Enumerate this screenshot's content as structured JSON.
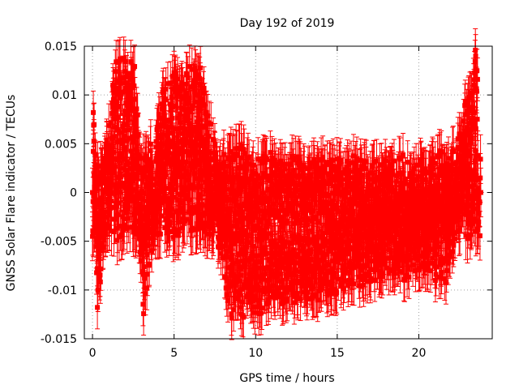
{
  "chart_data": {
    "type": "scatter",
    "title": "Day 192 of 2019",
    "xlabel": "GPS time / hours",
    "ylabel": "GNSS Solar Flare indicator / TECUs",
    "xlim": [
      -0.5,
      24.5
    ],
    "ylim": [
      -0.015,
      0.015
    ],
    "xticks": [
      0,
      5,
      10,
      15,
      20
    ],
    "xtick_labels": [
      "0",
      "5",
      "10",
      "15",
      "20"
    ],
    "yticks": [
      -0.015,
      -0.01,
      -0.005,
      0,
      0.005,
      0.01,
      0.015
    ],
    "ytick_labels": [
      "-0.015",
      "-0.01",
      "-0.005",
      "0",
      "0.005",
      "0.01",
      "0.015"
    ],
    "grid": true,
    "marker": "square",
    "error_bars": true,
    "series": [
      {
        "color": "#ff0000",
        "x": [
          0.0,
          0.5,
          1.0,
          1.5,
          2.0,
          2.5,
          3.0,
          3.5,
          4.0,
          4.5,
          5.0,
          5.5,
          6.0,
          6.5,
          7.0,
          7.5,
          8.0,
          8.5,
          9.0,
          9.5,
          10.0,
          10.5,
          11.0,
          11.5,
          12.0,
          12.5,
          13.0,
          13.5,
          14.0,
          14.5,
          15.0,
          15.5,
          16.0,
          16.5,
          17.0,
          17.5,
          18.0,
          18.5,
          19.0,
          19.5,
          20.0,
          20.5,
          21.0,
          21.5,
          22.0,
          22.5,
          23.0,
          23.5,
          23.8,
          0.05,
          0.3,
          1.4,
          2.6,
          3.1,
          4.4,
          6.6,
          8.5,
          13.6,
          19.3,
          21.7,
          23.6
        ],
        "y": [
          0.0,
          -0.001,
          0.001,
          -0.0008,
          0.0005,
          0.0003,
          -0.0006,
          0.0007,
          -0.0002,
          0.0004,
          -0.0005,
          0.0002,
          0.0006,
          -0.0003,
          0.0001,
          -0.0007,
          0.0003,
          -0.0001,
          0.0005,
          -0.0004,
          0.0002,
          -0.0006,
          0.0004,
          -0.0002,
          0.0001,
          0.0003,
          -0.0004,
          0.0002,
          0.0005,
          -0.0003,
          0.0001,
          -0.0005,
          0.0003,
          0.0,
          -0.0002,
          0.0004,
          -0.0001,
          0.0002,
          0.0003,
          -0.0004,
          0.0001,
          -0.0002,
          0.0003,
          -0.0005,
          0.0001,
          0.0004,
          -0.0006,
          0.0002,
          0.0,
          0.0082,
          -0.0078,
          0.0093,
          0.0096,
          -0.0084,
          0.008,
          0.0086,
          -0.0085,
          -0.0077,
          -0.0045,
          -0.0048,
          0.0116
        ],
        "err": [
          0.0025,
          0.0025,
          0.0025,
          0.0025,
          0.0025,
          0.0025,
          0.0025,
          0.0025,
          0.0025,
          0.0025,
          0.0025,
          0.0025,
          0.0025,
          0.0025,
          0.0025,
          0.0025,
          0.0025,
          0.0025,
          0.0025,
          0.0025,
          0.0022,
          0.0022,
          0.0022,
          0.0022,
          0.0022,
          0.0022,
          0.0022,
          0.0022,
          0.0022,
          0.0022,
          0.0022,
          0.0022,
          0.0022,
          0.0022,
          0.0022,
          0.0022,
          0.0022,
          0.0022,
          0.0022,
          0.0022,
          0.0022,
          0.0022,
          0.0022,
          0.0022,
          0.0025,
          0.0025,
          0.0025,
          0.0025,
          0.0025,
          0.0022,
          0.0022,
          0.0022,
          0.0022,
          0.0022,
          0.0022,
          0.0022,
          0.0022,
          0.0022,
          0.0022,
          0.0022,
          0.0022
        ]
      }
    ]
  }
}
